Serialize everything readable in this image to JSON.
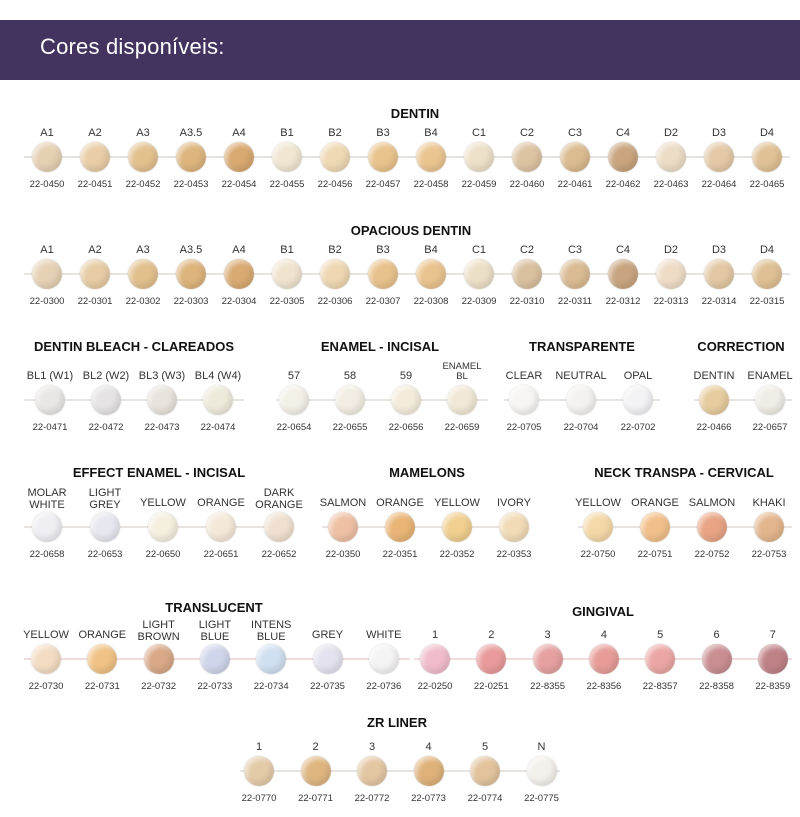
{
  "header": {
    "title": "Cores disponíveis:"
  },
  "sections": [
    {
      "key": "dentin",
      "title": "DENTIN",
      "items": [
        {
          "label": "A1",
          "code": "22-0450",
          "color": "#e6d0b2"
        },
        {
          "label": "A2",
          "code": "22-0451",
          "color": "#e8cda6"
        },
        {
          "label": "A3",
          "code": "22-0452",
          "color": "#e3c18f"
        },
        {
          "label": "A3.5",
          "code": "22-0453",
          "color": "#ddb57d"
        },
        {
          "label": "A4",
          "code": "22-0454",
          "color": "#d8a970"
        },
        {
          "label": "B1",
          "code": "22-0455",
          "color": "#f0e6d1"
        },
        {
          "label": "B2",
          "code": "22-0456",
          "color": "#efd9b4"
        },
        {
          "label": "B3",
          "code": "22-0457",
          "color": "#e9c38c"
        },
        {
          "label": "B4",
          "code": "22-0458",
          "color": "#eac590"
        },
        {
          "label": "C1",
          "code": "22-0459",
          "color": "#ede0c8"
        },
        {
          "label": "C2",
          "code": "22-0460",
          "color": "#dcc3a2"
        },
        {
          "label": "C3",
          "code": "22-0461",
          "color": "#dbbb90"
        },
        {
          "label": "C4",
          "code": "22-0462",
          "color": "#c9a47e"
        },
        {
          "label": "D2",
          "code": "22-0463",
          "color": "#ecdcc5"
        },
        {
          "label": "D3",
          "code": "22-0464",
          "color": "#e3c9a6"
        },
        {
          "label": "D4",
          "code": "22-0465",
          "color": "#e0c195"
        }
      ]
    },
    {
      "key": "opacious",
      "title": "OPACIOUS DENTIN",
      "items": [
        {
          "label": "A1",
          "code": "22-0300",
          "color": "#e6d1b4"
        },
        {
          "label": "A2",
          "code": "22-0301",
          "color": "#e7cca4"
        },
        {
          "label": "A3",
          "code": "22-0302",
          "color": "#e2c08e"
        },
        {
          "label": "A3.5",
          "code": "22-0303",
          "color": "#ddb47c"
        },
        {
          "label": "A4",
          "code": "22-0304",
          "color": "#d9ab73"
        },
        {
          "label": "B1",
          "code": "22-0305",
          "color": "#f0e4cf"
        },
        {
          "label": "B2",
          "code": "22-0306",
          "color": "#eed7b2"
        },
        {
          "label": "B3",
          "code": "22-0307",
          "color": "#e8c28c"
        },
        {
          "label": "B4",
          "code": "22-0308",
          "color": "#e9c38e"
        },
        {
          "label": "C1",
          "code": "22-0309",
          "color": "#ecdfc7"
        },
        {
          "label": "C2",
          "code": "22-0310",
          "color": "#d9c09f"
        },
        {
          "label": "C3",
          "code": "22-0311",
          "color": "#dabb93"
        },
        {
          "label": "C4",
          "code": "22-0312",
          "color": "#c8a580"
        },
        {
          "label": "D2",
          "code": "22-0313",
          "color": "#eedcc6"
        },
        {
          "label": "D3",
          "code": "22-0314",
          "color": "#e2c8a4"
        },
        {
          "label": "D4",
          "code": "22-0315",
          "color": "#dfc094"
        }
      ]
    },
    {
      "key": "bleach",
      "title": "DENTIN BLEACH - CLAREADOS",
      "items": [
        {
          "label": "BL1 (W1)",
          "code": "22-0471",
          "color": "#e9e7e6"
        },
        {
          "label": "BL2 (W2)",
          "code": "22-0472",
          "color": "#e5e3e3"
        },
        {
          "label": "BL3 (W3)",
          "code": "22-0473",
          "color": "#e8e3dc"
        },
        {
          "label": "BL4 (W4)",
          "code": "22-0474",
          "color": "#eeeadb"
        }
      ]
    },
    {
      "key": "enamel",
      "title": "ENAMEL - INCISAL",
      "items": [
        {
          "label": "57",
          "code": "22-0654",
          "color": "#f3f0e8"
        },
        {
          "label": "58",
          "code": "22-0655",
          "color": "#f2ede2"
        },
        {
          "label": "59",
          "code": "22-0656",
          "color": "#f3ecdb"
        },
        {
          "label": "ENAMEL\nBL",
          "code": "22-0659",
          "color": "#f1e8d6"
        }
      ]
    },
    {
      "key": "transparente",
      "title": "TRANSPARENTE",
      "items": [
        {
          "label": "CLEAR",
          "code": "22-0705",
          "color": "#f6f5f3"
        },
        {
          "label": "NEUTRAL",
          "code": "22-0704",
          "color": "#f3f2f0"
        },
        {
          "label": "OPAL",
          "code": "22-0702",
          "color": "#f3f2f4"
        }
      ]
    },
    {
      "key": "correction",
      "title": "CORRECTION",
      "items": [
        {
          "label": "DENTIN",
          "code": "22-0466",
          "color": "#e6cc9e"
        },
        {
          "label": "ENAMEL",
          "code": "22-0657",
          "color": "#f0ede6"
        }
      ]
    },
    {
      "key": "effect",
      "title": "EFFECT ENAMEL - INCISAL",
      "items": [
        {
          "label": "MOLAR\nWHITE",
          "code": "22-0658",
          "color": "#eeeef3"
        },
        {
          "label": "LIGHT\nGREY",
          "code": "22-0653",
          "color": "#e7e7ef"
        },
        {
          "label": "YELLOW",
          "code": "22-0650",
          "color": "#f4efdf"
        },
        {
          "label": "ORANGE",
          "code": "22-0651",
          "color": "#f4e8d8"
        },
        {
          "label": "DARK\nORANGE",
          "code": "22-0652",
          "color": "#f0e0d0"
        }
      ]
    },
    {
      "key": "mamelons",
      "title": "MAMELONS",
      "items": [
        {
          "label": "SALMON",
          "code": "22-0350",
          "color": "#efc0a4"
        },
        {
          "label": "ORANGE",
          "code": "22-0351",
          "color": "#e9b576"
        },
        {
          "label": "YELLOW",
          "code": "22-0352",
          "color": "#f0cf90"
        },
        {
          "label": "IVORY",
          "code": "22-0353",
          "color": "#f1dbb7"
        }
      ]
    },
    {
      "key": "neck",
      "title": "NECK TRANSPA - CERVICAL",
      "items": [
        {
          "label": "YELLOW",
          "code": "22-0750",
          "color": "#f4d8a8"
        },
        {
          "label": "ORANGE",
          "code": "22-0751",
          "color": "#f1c08a"
        },
        {
          "label": "SALMON",
          "code": "22-0752",
          "color": "#e8a484"
        },
        {
          "label": "KHAKI",
          "code": "22-0753",
          "color": "#e3b58c"
        }
      ]
    },
    {
      "key": "translucent",
      "title": "TRANSLUCENT",
      "items": [
        {
          "label": "YELLOW",
          "code": "22-0730",
          "color": "#f3dcc2"
        },
        {
          "label": "ORANGE",
          "code": "22-0731",
          "color": "#f0c285"
        },
        {
          "label": "LIGHT\nBROWN",
          "code": "22-0732",
          "color": "#d8a887"
        },
        {
          "label": "LIGHT\nBLUE",
          "code": "22-0733",
          "color": "#cfd5ea"
        },
        {
          "label": "INTENS\nBLUE",
          "code": "22-0734",
          "color": "#d0dff0"
        },
        {
          "label": "GREY",
          "code": "22-0735",
          "color": "#e4e2ee"
        },
        {
          "label": "WHITE",
          "code": "22-0736",
          "color": "#f5f4f5"
        }
      ]
    },
    {
      "key": "gingival",
      "title": "GINGIVAL",
      "items": [
        {
          "label": "1",
          "code": "22-0250",
          "color": "#f1bccb"
        },
        {
          "label": "2",
          "code": "22-0251",
          "color": "#e99b9b"
        },
        {
          "label": "3",
          "code": "22-8355",
          "color": "#e6a0a0"
        },
        {
          "label": "4",
          "code": "22-8356",
          "color": "#e79c98"
        },
        {
          "label": "5",
          "code": "22-8357",
          "color": "#eba6a4"
        },
        {
          "label": "6",
          "code": "22-8358",
          "color": "#c98e92"
        },
        {
          "label": "7",
          "code": "22-8359",
          "color": "#bf8287"
        }
      ]
    },
    {
      "key": "zrliner",
      "title": "ZR LINER",
      "items": [
        {
          "label": "1",
          "code": "22-0770",
          "color": "#e4cba8"
        },
        {
          "label": "2",
          "code": "22-0771",
          "color": "#dfb680"
        },
        {
          "label": "3",
          "code": "22-0772",
          "color": "#e3c7a3"
        },
        {
          "label": "4",
          "code": "22-0773",
          "color": "#dfb27a"
        },
        {
          "label": "5",
          "code": "22-0774",
          "color": "#e2c39c"
        },
        {
          "label": "N",
          "code": "22-0775",
          "color": "#f4f1ec"
        }
      ]
    }
  ]
}
